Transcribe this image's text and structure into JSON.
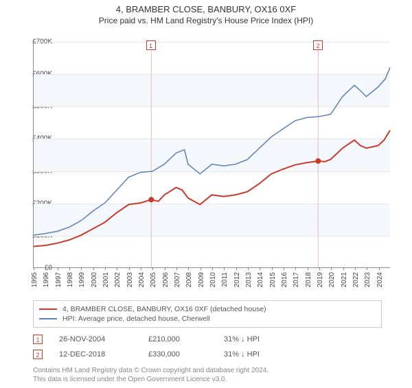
{
  "title": "4, BRAMBER CLOSE, BANBURY, OX16 0XF",
  "subtitle": "Price paid vs. HM Land Registry's House Price Index (HPI)",
  "chart": {
    "type": "line",
    "background_color": "#ffffff",
    "plot_band_color": "#f4f7fb",
    "gridline_color": "#e6e6e6",
    "axis_color": "#888888",
    "text_color": "#444444",
    "xlim": [
      1995,
      2025
    ],
    "ylim": [
      0,
      700000
    ],
    "ytick_step": 100000,
    "yticks": [
      "£0",
      "£100K",
      "£200K",
      "£300K",
      "£400K",
      "£500K",
      "£600K",
      "£700K"
    ],
    "xticks": [
      1995,
      1996,
      1997,
      1998,
      1999,
      2000,
      2001,
      2002,
      2003,
      2004,
      2005,
      2006,
      2007,
      2008,
      2009,
      2010,
      2011,
      2012,
      2013,
      2014,
      2015,
      2016,
      2017,
      2018,
      2019,
      2020,
      2021,
      2022,
      2023,
      2024
    ],
    "xlabel_fontsize": 10,
    "ylabel_fontsize": 10,
    "series": [
      {
        "name": "4, BRAMBER CLOSE, BANBURY, OX16 0XF (detached house)",
        "color": "#c93a2b",
        "line_width": 2,
        "data": [
          [
            1995,
            65000
          ],
          [
            1996,
            68000
          ],
          [
            1997,
            75000
          ],
          [
            1998,
            85000
          ],
          [
            1999,
            100000
          ],
          [
            2000,
            120000
          ],
          [
            2001,
            140000
          ],
          [
            2002,
            170000
          ],
          [
            2003,
            195000
          ],
          [
            2004,
            200000
          ],
          [
            2004.9,
            210000
          ],
          [
            2005.5,
            205000
          ],
          [
            2006,
            225000
          ],
          [
            2007,
            248000
          ],
          [
            2007.5,
            240000
          ],
          [
            2008,
            215000
          ],
          [
            2009,
            195000
          ],
          [
            2010,
            225000
          ],
          [
            2011,
            220000
          ],
          [
            2012,
            225000
          ],
          [
            2013,
            235000
          ],
          [
            2014,
            260000
          ],
          [
            2015,
            290000
          ],
          [
            2016,
            305000
          ],
          [
            2017,
            318000
          ],
          [
            2018,
            325000
          ],
          [
            2018.95,
            330000
          ],
          [
            2019.5,
            328000
          ],
          [
            2020,
            335000
          ],
          [
            2021,
            370000
          ],
          [
            2022,
            395000
          ],
          [
            2022.5,
            378000
          ],
          [
            2023,
            370000
          ],
          [
            2024,
            378000
          ],
          [
            2024.5,
            395000
          ],
          [
            2025,
            425000
          ]
        ]
      },
      {
        "name": "HPI: Average price, detached house, Cherwell",
        "color": "#5b7fb5",
        "line_width": 1.5,
        "data": [
          [
            1995,
            100000
          ],
          [
            1996,
            105000
          ],
          [
            1997,
            112000
          ],
          [
            1998,
            125000
          ],
          [
            1999,
            145000
          ],
          [
            2000,
            175000
          ],
          [
            2001,
            200000
          ],
          [
            2002,
            240000
          ],
          [
            2003,
            280000
          ],
          [
            2004,
            295000
          ],
          [
            2005,
            298000
          ],
          [
            2006,
            320000
          ],
          [
            2007,
            355000
          ],
          [
            2007.7,
            365000
          ],
          [
            2008,
            320000
          ],
          [
            2009,
            290000
          ],
          [
            2010,
            320000
          ],
          [
            2011,
            315000
          ],
          [
            2012,
            320000
          ],
          [
            2013,
            335000
          ],
          [
            2014,
            370000
          ],
          [
            2015,
            405000
          ],
          [
            2016,
            430000
          ],
          [
            2017,
            455000
          ],
          [
            2018,
            465000
          ],
          [
            2019,
            468000
          ],
          [
            2020,
            475000
          ],
          [
            2021,
            530000
          ],
          [
            2022,
            565000
          ],
          [
            2022.6,
            545000
          ],
          [
            2023,
            530000
          ],
          [
            2024,
            560000
          ],
          [
            2024.6,
            585000
          ],
          [
            2025,
            620000
          ]
        ]
      }
    ],
    "markers": [
      {
        "label": "1",
        "x": 2004.9,
        "y": 210000,
        "color": "#c93a2b"
      },
      {
        "label": "2",
        "x": 2018.95,
        "y": 330000,
        "color": "#c93a2b"
      }
    ]
  },
  "legend": {
    "border_color": "#c9c9c9",
    "items": [
      {
        "color": "#c93a2b",
        "label": "4, BRAMBER CLOSE, BANBURY, OX16 0XF (detached house)"
      },
      {
        "color": "#5b7fb5",
        "label": "HPI: Average price, detached house, Cherwell"
      }
    ]
  },
  "transactions": [
    {
      "num": "1",
      "date": "26-NOV-2004",
      "price": "£210,000",
      "pct": "31% ↓ HPI"
    },
    {
      "num": "2",
      "date": "12-DEC-2018",
      "price": "£330,000",
      "pct": "31% ↓ HPI"
    }
  ],
  "attribution": {
    "line1": "Contains HM Land Registry data © Crown copyright and database right 2024.",
    "line2": "This data is licensed under the Open Government Licence v3.0."
  }
}
